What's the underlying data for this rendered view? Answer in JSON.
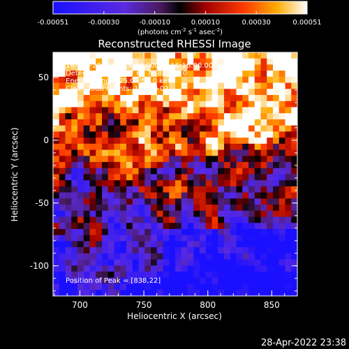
{
  "chart_data": {
    "type": "heatmap",
    "title": "Reconstructed RHESSI Image",
    "xlabel": "Heliocentric X (arcsec)",
    "ylabel": "Heliocentric Y (arcsec)",
    "xlim": [
      679,
      870
    ],
    "ylim": [
      -124,
      70
    ],
    "x_ticks": [
      700,
      750,
      800,
      850
    ],
    "y_ticks": [
      50,
      0,
      -50,
      -100
    ],
    "colorbar": {
      "ticks": [
        "-0.00051",
        "-0.00030",
        "-0.00010",
        "0.00010",
        "0.00030",
        "0.00051"
      ],
      "units_text": "(photons cm",
      "units_sup1": "-2",
      "units_mid": " s",
      "units_sup2": "-1",
      "units_mid2": " asec",
      "units_sup3": "-2",
      "units_end": ")",
      "range": [
        -0.00051,
        0.00051
      ]
    },
    "annotations": [
      "16-Mar-2005 16:14:40.000 to 16:16:00.000",
      "Detectors: 3F 4F 5F 6F 7F 8F, Att 0",
      "Energy Range: 25.0 - 50.0 keV",
      "Clean      Total counts: 1.19E+03"
    ],
    "peak_label": "Position of Peak = [838,22]",
    "peak": [
      838,
      22
    ],
    "grid": {
      "cols": 40,
      "rows": 40,
      "values_hint": "bright emission in upper half (peak near [838,22]); weak/negative values (purple-blue) in lower half"
    }
  },
  "timestamp": "28-Apr-2022 23:38",
  "colors": {
    "background": "#000000",
    "negative": "#2a1aff",
    "mid": "#6a2aa8",
    "zero": "#000000",
    "positive_low": "#b00000",
    "positive_mid": "#ff5a00",
    "positive_high": "#ffffe8"
  }
}
